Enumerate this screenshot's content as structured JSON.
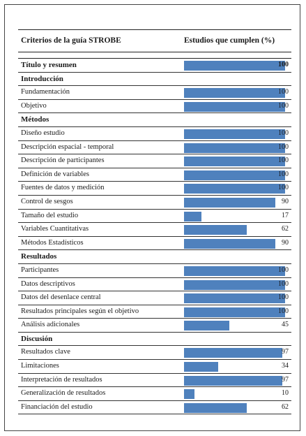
{
  "colors": {
    "bar": "#4f81bd"
  },
  "header": {
    "criteria": "Criterios de la guía STROBE",
    "studies": "Estudios que cumplen (%)"
  },
  "chart_data": {
    "type": "bar",
    "xlim": [
      0,
      100
    ],
    "rows": [
      {
        "label": "Título y resumen",
        "section": true,
        "value": 100
      },
      {
        "label": "Introducción",
        "section": true,
        "value": null
      },
      {
        "label": "Fundamentación",
        "section": false,
        "value": 100
      },
      {
        "label": "Objetivo",
        "section": false,
        "value": 100
      },
      {
        "label": "Métodos",
        "section": true,
        "value": null
      },
      {
        "label": "Diseño estudio",
        "section": false,
        "value": 100
      },
      {
        "label": "Descripción espacial - temporal",
        "section": false,
        "value": 100
      },
      {
        "label": "Descripción de participantes",
        "section": false,
        "value": 100
      },
      {
        "label": "Definición de variables",
        "section": false,
        "value": 100
      },
      {
        "label": "Fuentes de datos y medición",
        "section": false,
        "value": 100
      },
      {
        "label": "Control de sesgos",
        "section": false,
        "value": 90
      },
      {
        "label": "Tamaño del estudio",
        "section": false,
        "value": 17
      },
      {
        "label": "Variables Cuantitativas",
        "section": false,
        "value": 62
      },
      {
        "label": "Métodos Estadísticos",
        "section": false,
        "value": 90
      },
      {
        "label": "Resultados",
        "section": true,
        "value": null
      },
      {
        "label": "Participantes",
        "section": false,
        "value": 100
      },
      {
        "label": "Datos descriptivos",
        "section": false,
        "value": 100
      },
      {
        "label": "Datos del desenlace central",
        "section": false,
        "value": 100
      },
      {
        "label": "Resultados principales según el objetivo",
        "section": false,
        "value": 100
      },
      {
        "label": "Análisis adicionales",
        "section": false,
        "value": 45
      },
      {
        "label": "Discusión",
        "section": true,
        "value": null
      },
      {
        "label": "Resultados clave",
        "section": false,
        "value": 97
      },
      {
        "label": "Limitaciones",
        "section": false,
        "value": 34
      },
      {
        "label": "Interpretación de resultados",
        "section": false,
        "value": 97
      },
      {
        "label": "Generalización de resultados",
        "section": false,
        "value": 10
      },
      {
        "label": "Financiación del estudio",
        "section": false,
        "value": 62
      }
    ]
  }
}
